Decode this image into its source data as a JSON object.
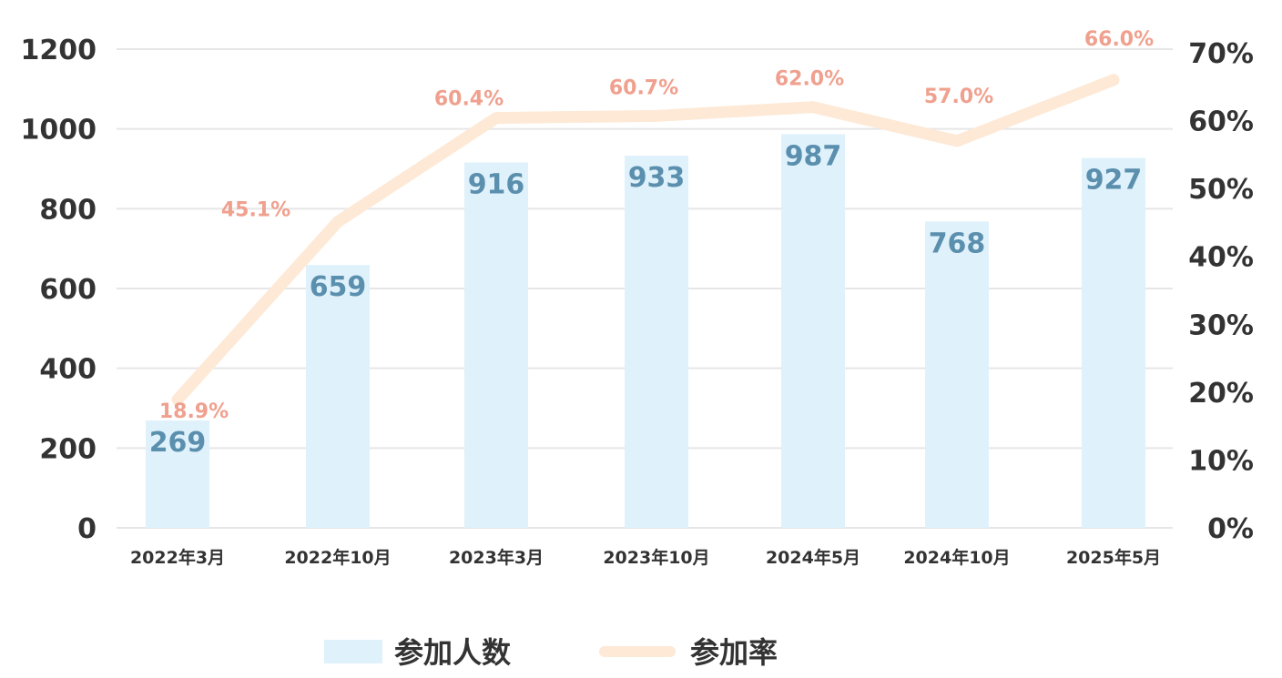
{
  "chart_data": {
    "type": "bar",
    "categories": [
      "2022年3月",
      "2022年10月",
      "2023年3月",
      "2023年10月",
      "2024年5月",
      "2024年10月",
      "2025年5月"
    ],
    "series": [
      {
        "name": "参加人数",
        "type": "bar",
        "axis": "left",
        "color": "#dff1fb",
        "label_color": "#5b8fae",
        "values": [
          269,
          659,
          916,
          933,
          987,
          768,
          927
        ],
        "value_labels": [
          "269",
          "659",
          "916",
          "933",
          "987",
          "768",
          "927"
        ]
      },
      {
        "name": "参加率",
        "type": "line",
        "axis": "right",
        "color": "#fde9d6",
        "label_color": "#f0a08e",
        "values": [
          0.189,
          0.451,
          0.604,
          0.607,
          0.62,
          0.57,
          0.66
        ],
        "value_labels": [
          "18.9%",
          "45.1%",
          "60.4%",
          "60.7%",
          "62.0%",
          "57.0%",
          "66.0%"
        ]
      }
    ],
    "left_axis": {
      "ylim": [
        0,
        1200
      ],
      "ticks": [
        0,
        200,
        400,
        600,
        800,
        1000,
        1200
      ],
      "tick_labels": [
        "0",
        "200",
        "400",
        "600",
        "800",
        "1000",
        "1200"
      ]
    },
    "right_axis": {
      "ylim": [
        0,
        0.7
      ],
      "ticks": [
        0,
        0.1,
        0.2,
        0.3,
        0.4,
        0.5,
        0.6,
        0.7
      ],
      "tick_labels": [
        "0%",
        "10%",
        "20%",
        "30%",
        "40%",
        "50%",
        "60%",
        "70%"
      ]
    },
    "grid": true,
    "gridline_color": "#e6e6e6",
    "legend": {
      "position": "bottom",
      "items": [
        "参加人数",
        "参加率"
      ]
    }
  }
}
